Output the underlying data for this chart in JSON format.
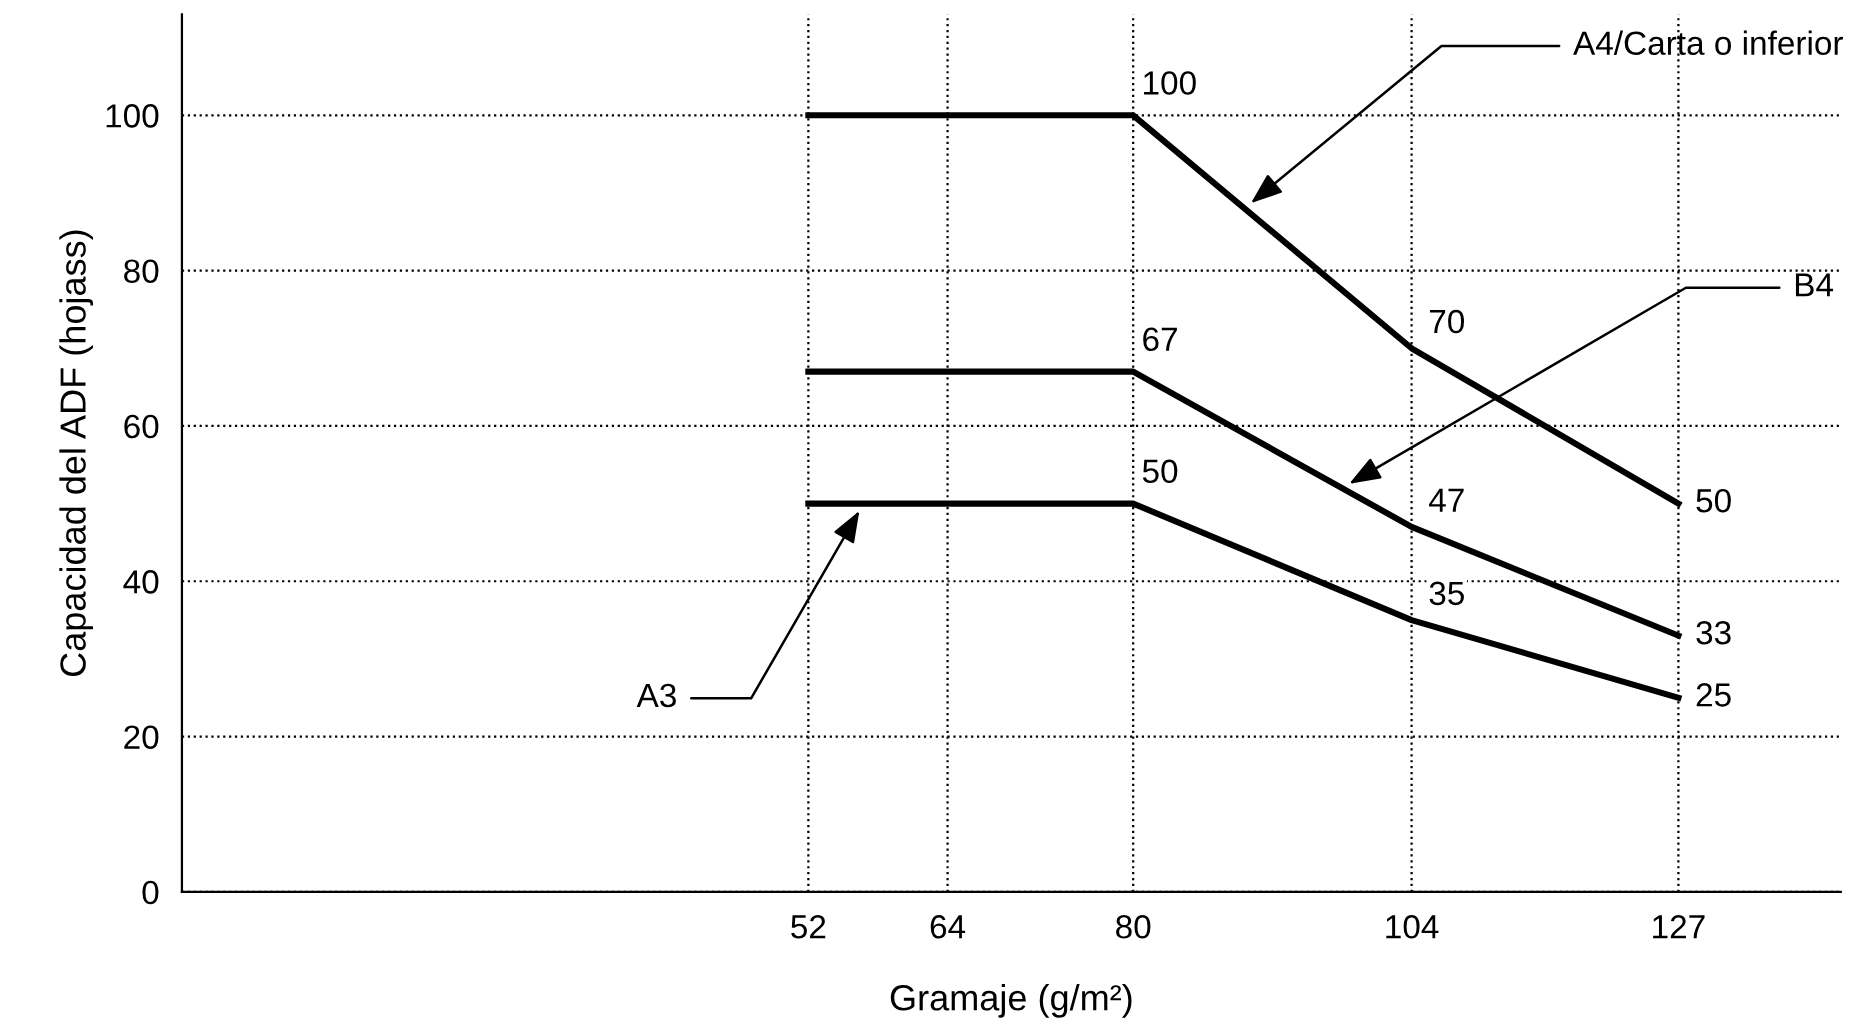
{
  "chart_data": {
    "type": "line",
    "xlabel": "Gramaje (g/m²)",
    "ylabel": "Capacidad del ADF (hojass)",
    "xlim": [
      -2,
      141
    ],
    "xticks": [
      52,
      64,
      80,
      104,
      127
    ],
    "ylim": [
      0,
      113
    ],
    "yticks": [
      0,
      20,
      40,
      60,
      80,
      100
    ],
    "grid": true,
    "legend": false,
    "marker": "none",
    "line_style": "solid",
    "x": [
      52,
      80,
      104,
      127
    ],
    "series": [
      {
        "name": "A4/Carta o inferior",
        "color": "#000000",
        "values": [
          100,
          100,
          70,
          50
        ],
        "value_labels": [
          null,
          "100",
          "70",
          "50"
        ]
      },
      {
        "name": "B4",
        "color": "#000000",
        "values": [
          67,
          67,
          47,
          33
        ],
        "value_labels": [
          null,
          "67",
          "47",
          "33"
        ]
      },
      {
        "name": "A3",
        "color": "#000000",
        "values": [
          50,
          50,
          35,
          25
        ],
        "value_labels": [
          null,
          "50",
          "35",
          "25"
        ]
      }
    ]
  }
}
